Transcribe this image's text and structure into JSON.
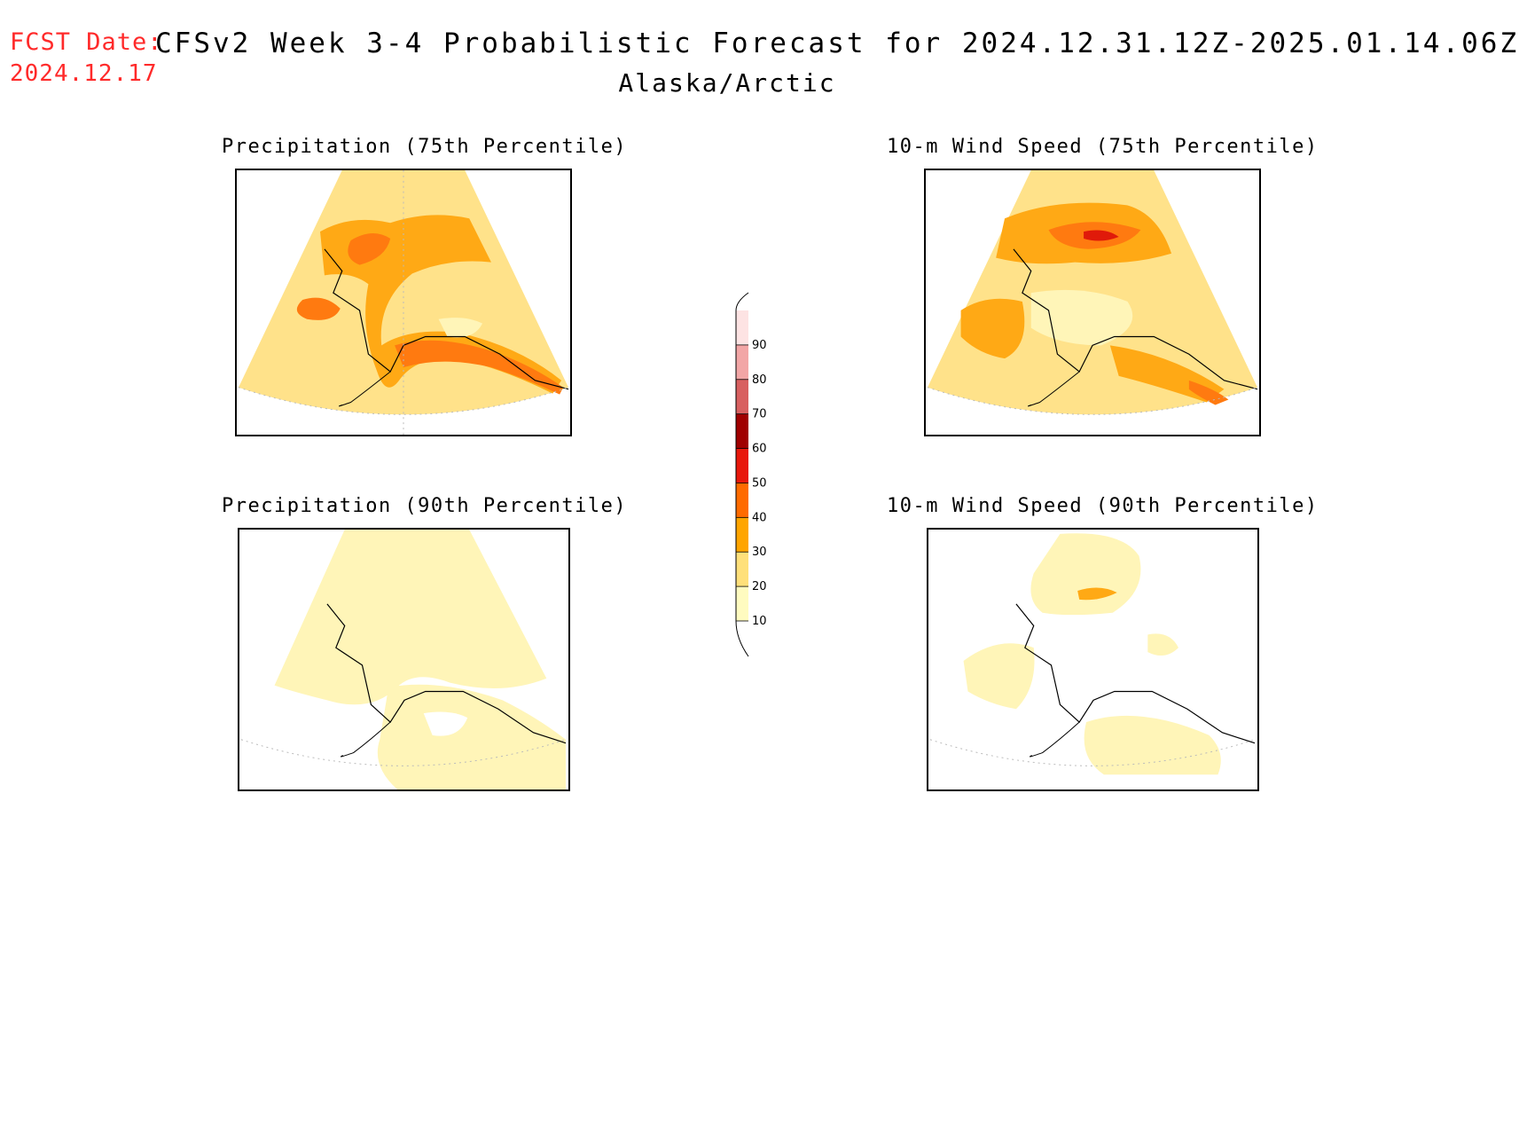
{
  "header": {
    "fcst_label": "FCST Date:",
    "fcst_date": "2024.12.17",
    "title": "CFSv2 Week 3-4 Probabilistic Forecast for 2024.12.31.12Z-2025.01.14.06Z",
    "subtitle": "Alaska/Arctic"
  },
  "panels": [
    {
      "id": "precip-75",
      "title": "Precipitation (75th Percentile)"
    },
    {
      "id": "wind-75",
      "title": "10-m Wind Speed (75th Percentile)"
    },
    {
      "id": "precip-90",
      "title": "Precipitation (90th Percentile)"
    },
    {
      "id": "wind-90",
      "title": "10-m Wind Speed (90th Percentile)"
    }
  ],
  "colorbar": {
    "levels": [
      "10",
      "20",
      "30",
      "40",
      "50",
      "60",
      "70",
      "80",
      "90"
    ],
    "colors": [
      "#fffbc0",
      "#ffe07a",
      "#ffa500",
      "#ff6b00",
      "#e8180c",
      "#a00000",
      "#d86060",
      "#f2a6a6",
      "#fde3e3"
    ]
  },
  "colors": {
    "fcst_text": "#ff2a2a",
    "low": "#fff5b8",
    "base": "#ffe28a",
    "mid": "#ffa915",
    "high": "#ff7a10",
    "peak": "#e01a0a"
  }
}
